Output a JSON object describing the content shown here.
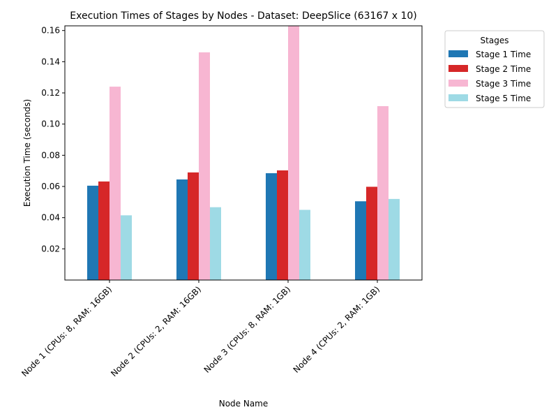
{
  "chart_data": {
    "type": "bar",
    "title": "Execution Times of Stages by Nodes - Dataset: DeepSlice (63167 x 10)",
    "xlabel": "Node Name",
    "ylabel": "Execution Time (seconds)",
    "categories": [
      "Node 1 (CPUs: 8, RAM: 16GB)",
      "Node 2 (CPUs: 2, RAM: 16GB)",
      "Node 3 (CPUs: 8, RAM: 1GB)",
      "Node 4 (CPUs: 2, RAM: 1GB)"
    ],
    "series": [
      {
        "name": "Stage 1 Time",
        "color": "#1f77b4",
        "values": [
          0.0605,
          0.0645,
          0.0685,
          0.0505
        ]
      },
      {
        "name": "Stage 2 Time",
        "color": "#d62728",
        "values": [
          0.0632,
          0.069,
          0.0703,
          0.0598
        ]
      },
      {
        "name": "Stage 3 Time",
        "color": "#f7b6d2",
        "values": [
          0.124,
          0.146,
          0.163,
          0.1115
        ]
      },
      {
        "name": "Stage 5 Time",
        "color": "#9edae5",
        "values": [
          0.0415,
          0.0467,
          0.045,
          0.052
        ]
      }
    ],
    "ylim": [
      0.0,
      0.163
    ],
    "yticks": [
      "0.02",
      "0.04",
      "0.06",
      "0.08",
      "0.10",
      "0.12",
      "0.14",
      "0.16"
    ],
    "legend": {
      "title": "Stages",
      "placement": "outside upper right"
    },
    "grid": false
  }
}
